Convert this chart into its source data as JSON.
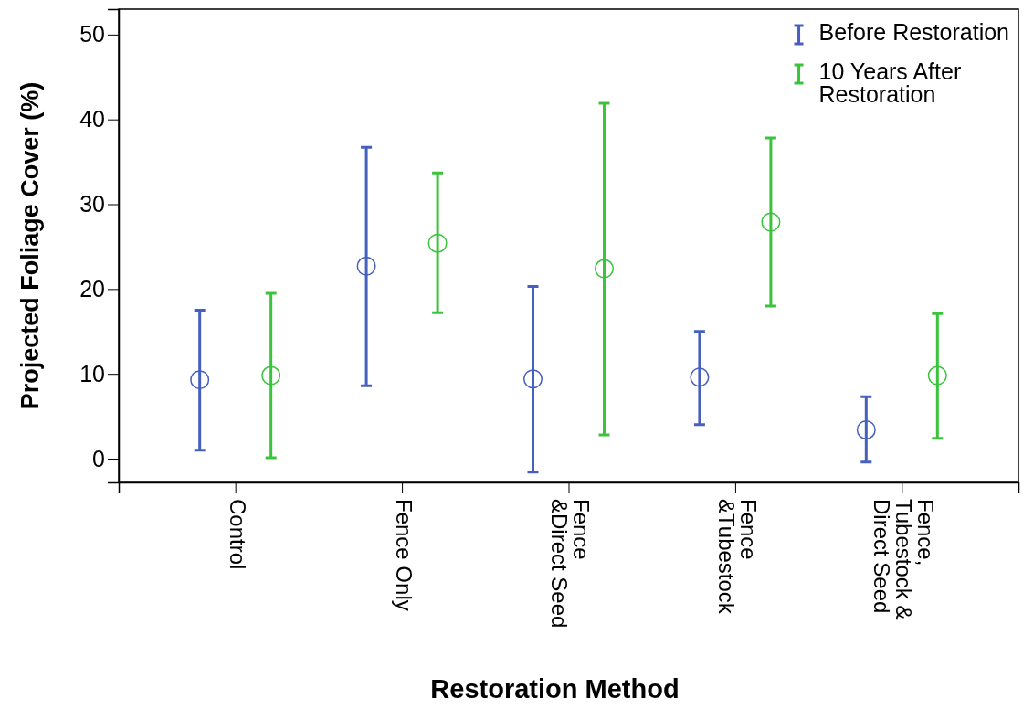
{
  "chart_data": {
    "type": "scatter",
    "xlabel": "Restoration Method",
    "ylabel": "Projected Foliage Cover (%)",
    "categories": [
      "Control",
      "Fence Only",
      "Fence &Direct Seed",
      "Fence &Tubestock",
      "Fence, Tubestock & Direct Seed"
    ],
    "ylim": [
      -2.8,
      53
    ],
    "yticks": [
      0,
      10,
      20,
      30,
      40,
      50
    ],
    "grid": false,
    "legend": "top right",
    "marker": "circle",
    "series": [
      {
        "name": "Before Restoration",
        "color": "#4560bd",
        "values": [
          9.3,
          22.7,
          9.4,
          9.6,
          3.4
        ],
        "errors": [
          [
            1.0,
            17.5
          ],
          [
            8.6,
            36.7
          ],
          [
            -1.6,
            20.3
          ],
          [
            4.0,
            15.0
          ],
          [
            -0.4,
            7.3
          ]
        ]
      },
      {
        "name": "10 Years After Restoration",
        "color": "#3cc33c",
        "values": [
          9.8,
          25.4,
          22.4,
          27.9,
          9.8
        ],
        "errors": [
          [
            0.1,
            19.5
          ],
          [
            17.2,
            33.7
          ],
          [
            2.8,
            41.9
          ],
          [
            18.0,
            37.8
          ],
          [
            2.4,
            17.1
          ]
        ]
      }
    ]
  }
}
